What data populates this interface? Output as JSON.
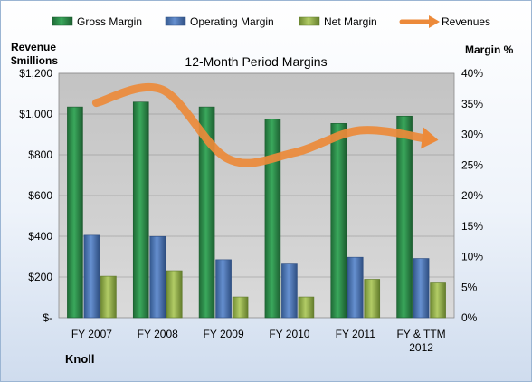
{
  "chart_data": {
    "type": "bar",
    "title": "12-Month Period Margins",
    "company": "Knoll",
    "left_axis": {
      "label_line1": "Revenue",
      "label_line2": "$millions",
      "range": [
        0,
        1200
      ],
      "ticks": [
        "$-",
        "$200",
        "$400",
        "$600",
        "$800",
        "$1,000",
        "$1,200"
      ]
    },
    "right_axis": {
      "label": "Margin %",
      "range": [
        0,
        40
      ],
      "ticks": [
        "0%",
        "5%",
        "10%",
        "15%",
        "20%",
        "25%",
        "30%",
        "35%",
        "40%"
      ]
    },
    "categories": [
      [
        "FY 2007"
      ],
      [
        "FY 2008"
      ],
      [
        "FY 2009"
      ],
      [
        "FY 2010"
      ],
      [
        "FY 2011"
      ],
      [
        "FY & TTM",
        "2012"
      ]
    ],
    "series": [
      {
        "name": "Gross Margin",
        "type": "bar",
        "axis": "right",
        "color": "#2e8b4a",
        "values": [
          34.5,
          35.3,
          34.5,
          32.5,
          31.8,
          33.0
        ]
      },
      {
        "name": "Operating Margin",
        "type": "bar",
        "axis": "right",
        "color": "#4a72b8",
        "values": [
          13.5,
          13.3,
          9.5,
          8.8,
          9.9,
          9.7
        ]
      },
      {
        "name": "Net Margin",
        "type": "bar",
        "axis": "right",
        "color": "#93b04a",
        "values": [
          6.8,
          7.7,
          3.4,
          3.4,
          6.3,
          5.7
        ]
      },
      {
        "name": "Revenues",
        "type": "line",
        "axis": "left",
        "color": "#ec8a3a",
        "values": [
          1055,
          1120,
          780,
          810,
          920,
          880
        ]
      }
    ],
    "legend_position": "top",
    "grid": true
  }
}
